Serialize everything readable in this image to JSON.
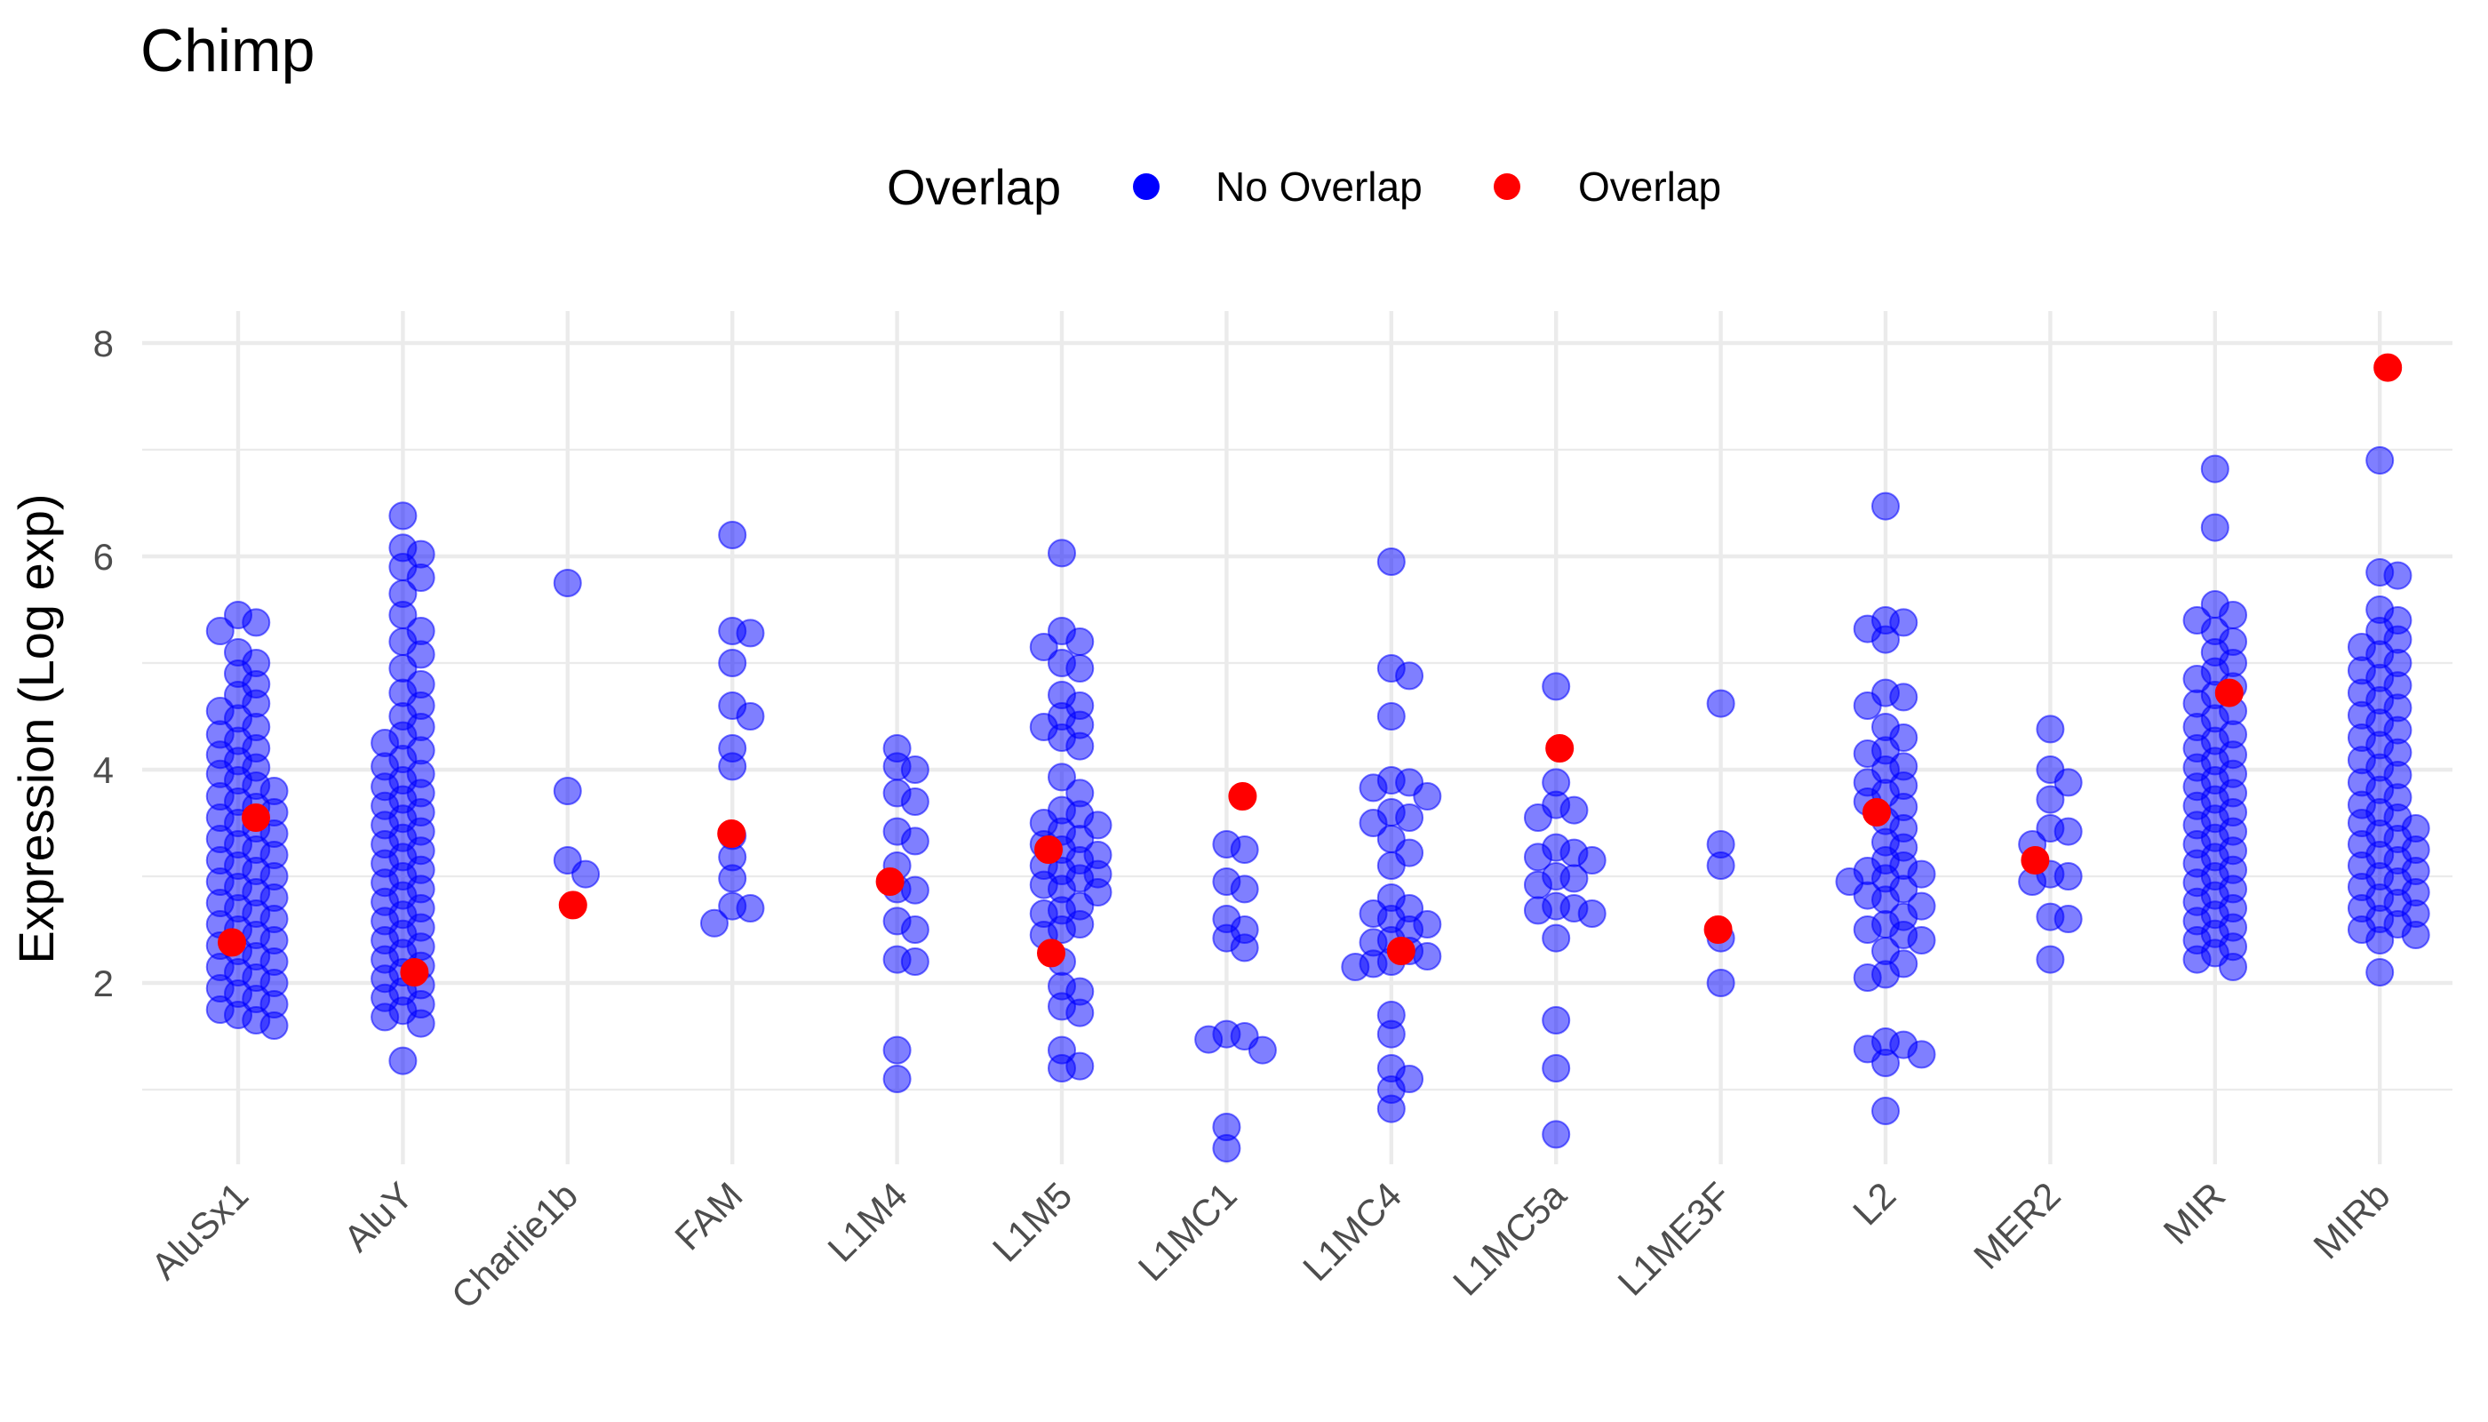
{
  "chart_data": {
    "type": "scatter",
    "title": "Chimp",
    "xlabel": "",
    "ylabel": "Expression (Log exp)",
    "ylim": [
      0.3,
      8.3
    ],
    "yticks": [
      2,
      4,
      6,
      8
    ],
    "grid": true,
    "legend": {
      "title": "Overlap",
      "position": "top",
      "entries": [
        {
          "label": "No Overlap",
          "color": "#0000ff"
        },
        {
          "label": "Overlap",
          "color": "#ff0000"
        }
      ]
    },
    "categories": [
      "AluSx1",
      "AluY",
      "Charlie1b",
      "FAM",
      "L1M4",
      "L1M5",
      "L1MC1",
      "L1MC4",
      "L1MC5a",
      "L1ME3F",
      "L2",
      "MER2",
      "MIR",
      "MIRb"
    ],
    "series": [
      {
        "name": "No Overlap",
        "color": "#0000ff",
        "opacity": 0.5,
        "values": {
          "AluSx1": [
            5.45,
            5.38,
            5.3,
            5.1,
            5.0,
            4.9,
            4.8,
            4.7,
            4.62,
            4.55,
            4.48,
            4.4,
            4.33,
            4.27,
            4.2,
            4.14,
            4.08,
            4.02,
            3.96,
            3.9,
            3.85,
            3.8,
            3.75,
            3.7,
            3.65,
            3.6,
            3.55,
            3.5,
            3.45,
            3.4,
            3.35,
            3.3,
            3.25,
            3.2,
            3.15,
            3.1,
            3.05,
            3.0,
            2.95,
            2.9,
            2.85,
            2.8,
            2.75,
            2.7,
            2.65,
            2.6,
            2.55,
            2.5,
            2.45,
            2.4,
            2.35,
            2.3,
            2.25,
            2.2,
            2.15,
            2.1,
            2.05,
            2.0,
            1.95,
            1.9,
            1.85,
            1.8,
            1.75,
            1.7,
            1.65,
            1.6
          ],
          "AluY": [
            6.38,
            6.08,
            6.02,
            5.9,
            5.8,
            5.65,
            5.45,
            5.3,
            5.2,
            5.08,
            4.95,
            4.8,
            4.72,
            4.6,
            4.5,
            4.4,
            4.32,
            4.25,
            4.18,
            4.1,
            4.03,
            3.96,
            3.9,
            3.84,
            3.78,
            3.72,
            3.66,
            3.6,
            3.54,
            3.48,
            3.42,
            3.36,
            3.3,
            3.24,
            3.18,
            3.12,
            3.06,
            3.0,
            2.94,
            2.88,
            2.82,
            2.76,
            2.7,
            2.64,
            2.58,
            2.52,
            2.46,
            2.4,
            2.34,
            2.28,
            2.22,
            2.16,
            2.1,
            2.04,
            1.98,
            1.92,
            1.86,
            1.8,
            1.74,
            1.68,
            1.62,
            1.27
          ],
          "Charlie1b": [
            5.75,
            3.8,
            3.15,
            3.02
          ],
          "FAM": [
            6.2,
            5.3,
            5.28,
            5.0,
            4.6,
            4.5,
            4.2,
            4.03,
            3.38,
            3.18,
            2.98,
            2.72,
            2.7,
            2.56
          ],
          "L1M4": [
            4.2,
            4.03,
            4.0,
            3.78,
            3.7,
            3.42,
            3.33,
            3.1,
            2.88,
            2.87,
            2.58,
            2.5,
            2.22,
            2.2,
            1.37,
            1.1
          ],
          "L1M5": [
            6.03,
            5.3,
            5.2,
            5.15,
            5.0,
            4.95,
            4.7,
            4.6,
            4.5,
            4.42,
            4.4,
            4.3,
            4.22,
            3.93,
            3.78,
            3.62,
            3.58,
            3.5,
            3.48,
            3.42,
            3.35,
            3.3,
            3.25,
            3.2,
            3.15,
            3.1,
            3.05,
            3.02,
            2.98,
            2.92,
            2.88,
            2.85,
            2.72,
            2.68,
            2.65,
            2.55,
            2.5,
            2.45,
            2.2,
            1.97,
            1.92,
            1.78,
            1.72,
            1.37,
            1.22,
            1.2
          ],
          "L1MC1": [
            3.3,
            3.25,
            2.95,
            2.88,
            2.6,
            2.5,
            2.42,
            2.33,
            1.52,
            1.5,
            1.47,
            1.37,
            0.65,
            0.45
          ],
          "L1MC4": [
            5.95,
            4.95,
            4.88,
            4.5,
            3.9,
            3.88,
            3.83,
            3.75,
            3.6,
            3.55,
            3.5,
            3.35,
            3.22,
            3.1,
            2.8,
            2.7,
            2.65,
            2.6,
            2.55,
            2.5,
            2.4,
            2.38,
            2.3,
            2.25,
            2.2,
            2.18,
            2.15,
            1.7,
            1.52,
            1.2,
            1.1,
            1.0,
            0.82
          ],
          "L1MC5a": [
            4.78,
            3.88,
            3.67,
            3.62,
            3.55,
            3.27,
            3.22,
            3.18,
            3.15,
            3.0,
            2.98,
            2.92,
            2.72,
            2.7,
            2.68,
            2.65,
            2.42,
            1.65,
            1.2,
            0.58
          ],
          "L1ME3F": [
            4.62,
            3.3,
            3.1,
            2.42,
            2.0
          ],
          "L2": [
            6.47,
            5.4,
            5.38,
            5.32,
            5.22,
            4.72,
            4.68,
            4.6,
            4.4,
            4.3,
            4.18,
            4.15,
            4.03,
            4.0,
            3.88,
            3.85,
            3.78,
            3.7,
            3.65,
            3.52,
            3.45,
            3.32,
            3.27,
            3.15,
            3.1,
            3.05,
            3.02,
            2.98,
            2.95,
            2.88,
            2.82,
            2.78,
            2.72,
            2.62,
            2.55,
            2.5,
            2.45,
            2.4,
            2.3,
            2.18,
            2.08,
            2.05,
            1.45,
            1.42,
            1.38,
            1.33,
            1.25,
            0.8
          ],
          "MER2": [
            4.38,
            4.0,
            3.88,
            3.72,
            3.45,
            3.42,
            3.3,
            3.02,
            3.0,
            2.95,
            2.62,
            2.6,
            2.22
          ],
          "MIR": [
            6.82,
            6.27,
            5.55,
            5.45,
            5.4,
            5.3,
            5.2,
            5.1,
            5.0,
            4.92,
            4.85,
            4.78,
            4.7,
            4.62,
            4.55,
            4.48,
            4.4,
            4.33,
            4.27,
            4.2,
            4.14,
            4.08,
            4.02,
            3.96,
            3.9,
            3.84,
            3.78,
            3.72,
            3.66,
            3.6,
            3.54,
            3.48,
            3.42,
            3.36,
            3.3,
            3.24,
            3.18,
            3.12,
            3.06,
            3.0,
            2.94,
            2.88,
            2.82,
            2.76,
            2.7,
            2.64,
            2.58,
            2.52,
            2.46,
            2.4,
            2.34,
            2.28,
            2.22,
            2.15
          ],
          "MIRb": [
            6.9,
            5.85,
            5.82,
            5.5,
            5.4,
            5.3,
            5.22,
            5.15,
            5.08,
            5.0,
            4.93,
            4.86,
            4.79,
            4.72,
            4.65,
            4.58,
            4.51,
            4.44,
            4.37,
            4.3,
            4.23,
            4.16,
            4.09,
            4.02,
            3.95,
            3.88,
            3.81,
            3.74,
            3.67,
            3.6,
            3.55,
            3.5,
            3.45,
            3.4,
            3.35,
            3.3,
            3.25,
            3.2,
            3.15,
            3.1,
            3.05,
            3.0,
            2.95,
            2.9,
            2.85,
            2.8,
            2.75,
            2.7,
            2.65,
            2.6,
            2.55,
            2.5,
            2.45,
            2.4,
            2.1
          ]
        }
      },
      {
        "name": "Overlap",
        "color": "#ff0000",
        "opacity": 1,
        "values": {
          "AluSx1": [
            3.55,
            2.38
          ],
          "AluY": [
            2.1
          ],
          "Charlie1b": [
            2.73
          ],
          "FAM": [
            3.4
          ],
          "L1M4": [
            2.95
          ],
          "L1M5": [
            3.25,
            2.28
          ],
          "L1MC1": [
            3.75
          ],
          "L1MC4": [
            2.3
          ],
          "L1MC5a": [
            4.2
          ],
          "L1ME3F": [
            2.5
          ],
          "L2": [
            3.6
          ],
          "MER2": [
            3.15
          ],
          "MIR": [
            4.72
          ],
          "MIRb": [
            7.77
          ]
        }
      }
    ]
  },
  "colors": {
    "grid": "#ebebeb",
    "no_overlap": "#0000ff",
    "overlap": "#ff0000"
  }
}
